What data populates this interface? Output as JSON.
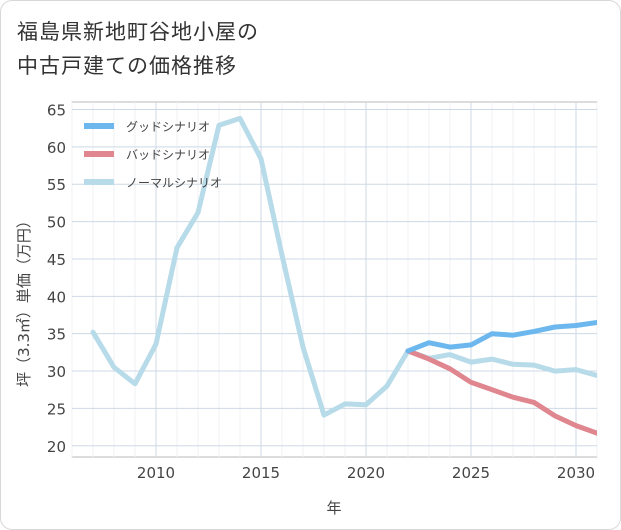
{
  "title_lines": [
    "福島県新地町谷地小屋の",
    "中古戸建ての価格推移"
  ],
  "chart_data": {
    "type": "line",
    "title": "福島県新地町谷地小屋の中古戸建ての価格推移",
    "xlabel": "年",
    "ylabel": "坪（3.3㎡）単価（万円）",
    "xlim": [
      2006,
      2031
    ],
    "ylim": [
      18.5,
      66
    ],
    "xticks": [
      2010,
      2015,
      2020,
      2025,
      2030
    ],
    "yticks": [
      20,
      25,
      30,
      35,
      40,
      45,
      50,
      55,
      60,
      65
    ],
    "legend_position": "top-left",
    "series": [
      {
        "name": "グッドシナリオ",
        "color": "#6cb8ee",
        "x": [
          2022,
          2023,
          2024,
          2025,
          2026,
          2027,
          2028,
          2029,
          2030,
          2031
        ],
        "y": [
          32.7,
          33.8,
          33.2,
          33.5,
          35.0,
          34.8,
          35.3,
          35.9,
          36.1,
          36.5
        ]
      },
      {
        "name": "バッドシナリオ",
        "color": "#e0868f",
        "x": [
          2022,
          2023,
          2024,
          2025,
          2026,
          2027,
          2028,
          2029,
          2030,
          2031
        ],
        "y": [
          32.7,
          31.6,
          30.3,
          28.5,
          27.5,
          26.5,
          25.8,
          24.0,
          22.7,
          21.7
        ]
      },
      {
        "name": "ノーマルシナリオ",
        "color": "#b7dbe9",
        "x": [
          2007,
          2008,
          2009,
          2010,
          2011,
          2012,
          2013,
          2014,
          2015,
          2016,
          2017,
          2018,
          2019,
          2020,
          2021,
          2022,
          2023,
          2024,
          2025,
          2026,
          2027,
          2028,
          2029,
          2030,
          2031
        ],
        "y": [
          35.2,
          30.5,
          28.3,
          33.6,
          46.5,
          51.2,
          62.9,
          63.8,
          58.4,
          45.5,
          33.2,
          24.1,
          25.6,
          25.5,
          28.0,
          32.7,
          31.7,
          32.2,
          31.2,
          31.6,
          30.9,
          30.8,
          30.0,
          30.2,
          29.4
        ]
      }
    ]
  }
}
